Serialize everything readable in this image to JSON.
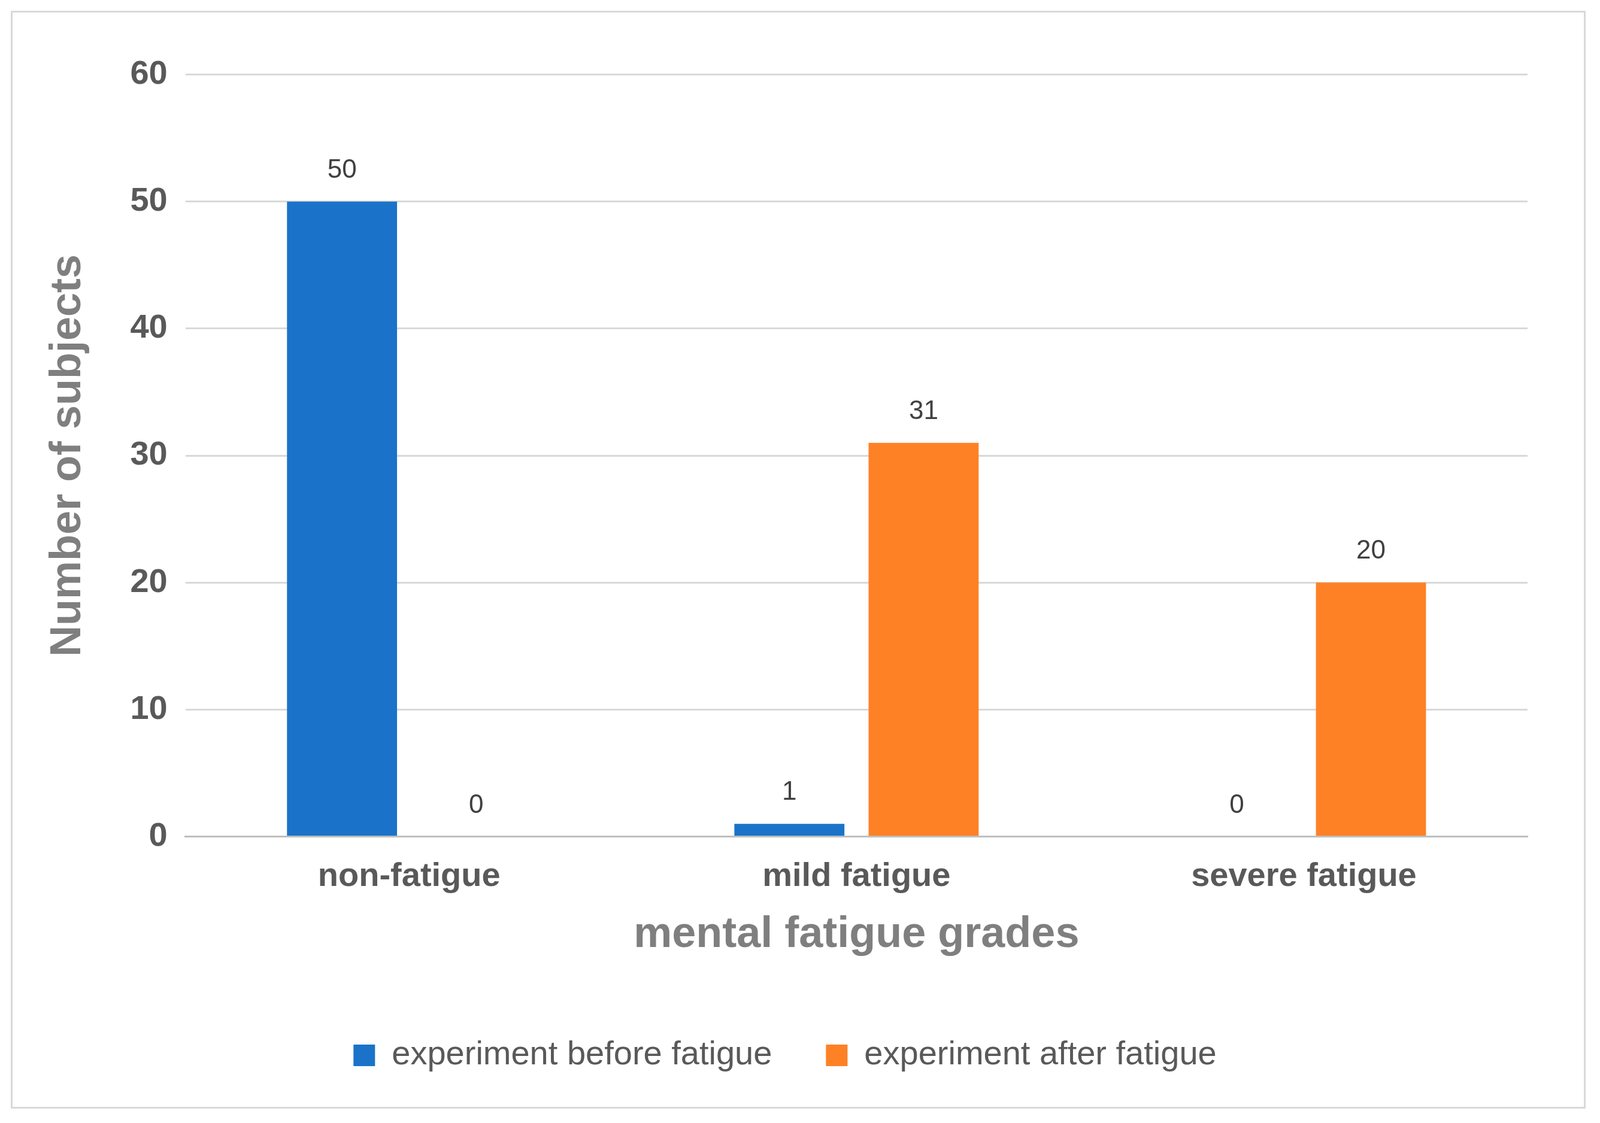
{
  "chart_data": {
    "type": "bar",
    "x_label": "mental fatigue grades",
    "y_label": "Number of subjects",
    "categories": [
      "non-fatigue",
      "mild fatigue",
      "severe fatigue"
    ],
    "series": [
      {
        "name": "experiment before fatigue",
        "color": "#1a73c8",
        "values": [
          50,
          1,
          0
        ]
      },
      {
        "name": "experiment after fatigue",
        "color": "#fe8125",
        "values": [
          0,
          31,
          20
        ]
      }
    ],
    "ylim": [
      0,
      60
    ],
    "yticks": [
      0,
      10,
      20,
      30,
      40,
      50,
      60
    ],
    "grid": true,
    "legend": "bottom",
    "data_labels": true
  }
}
